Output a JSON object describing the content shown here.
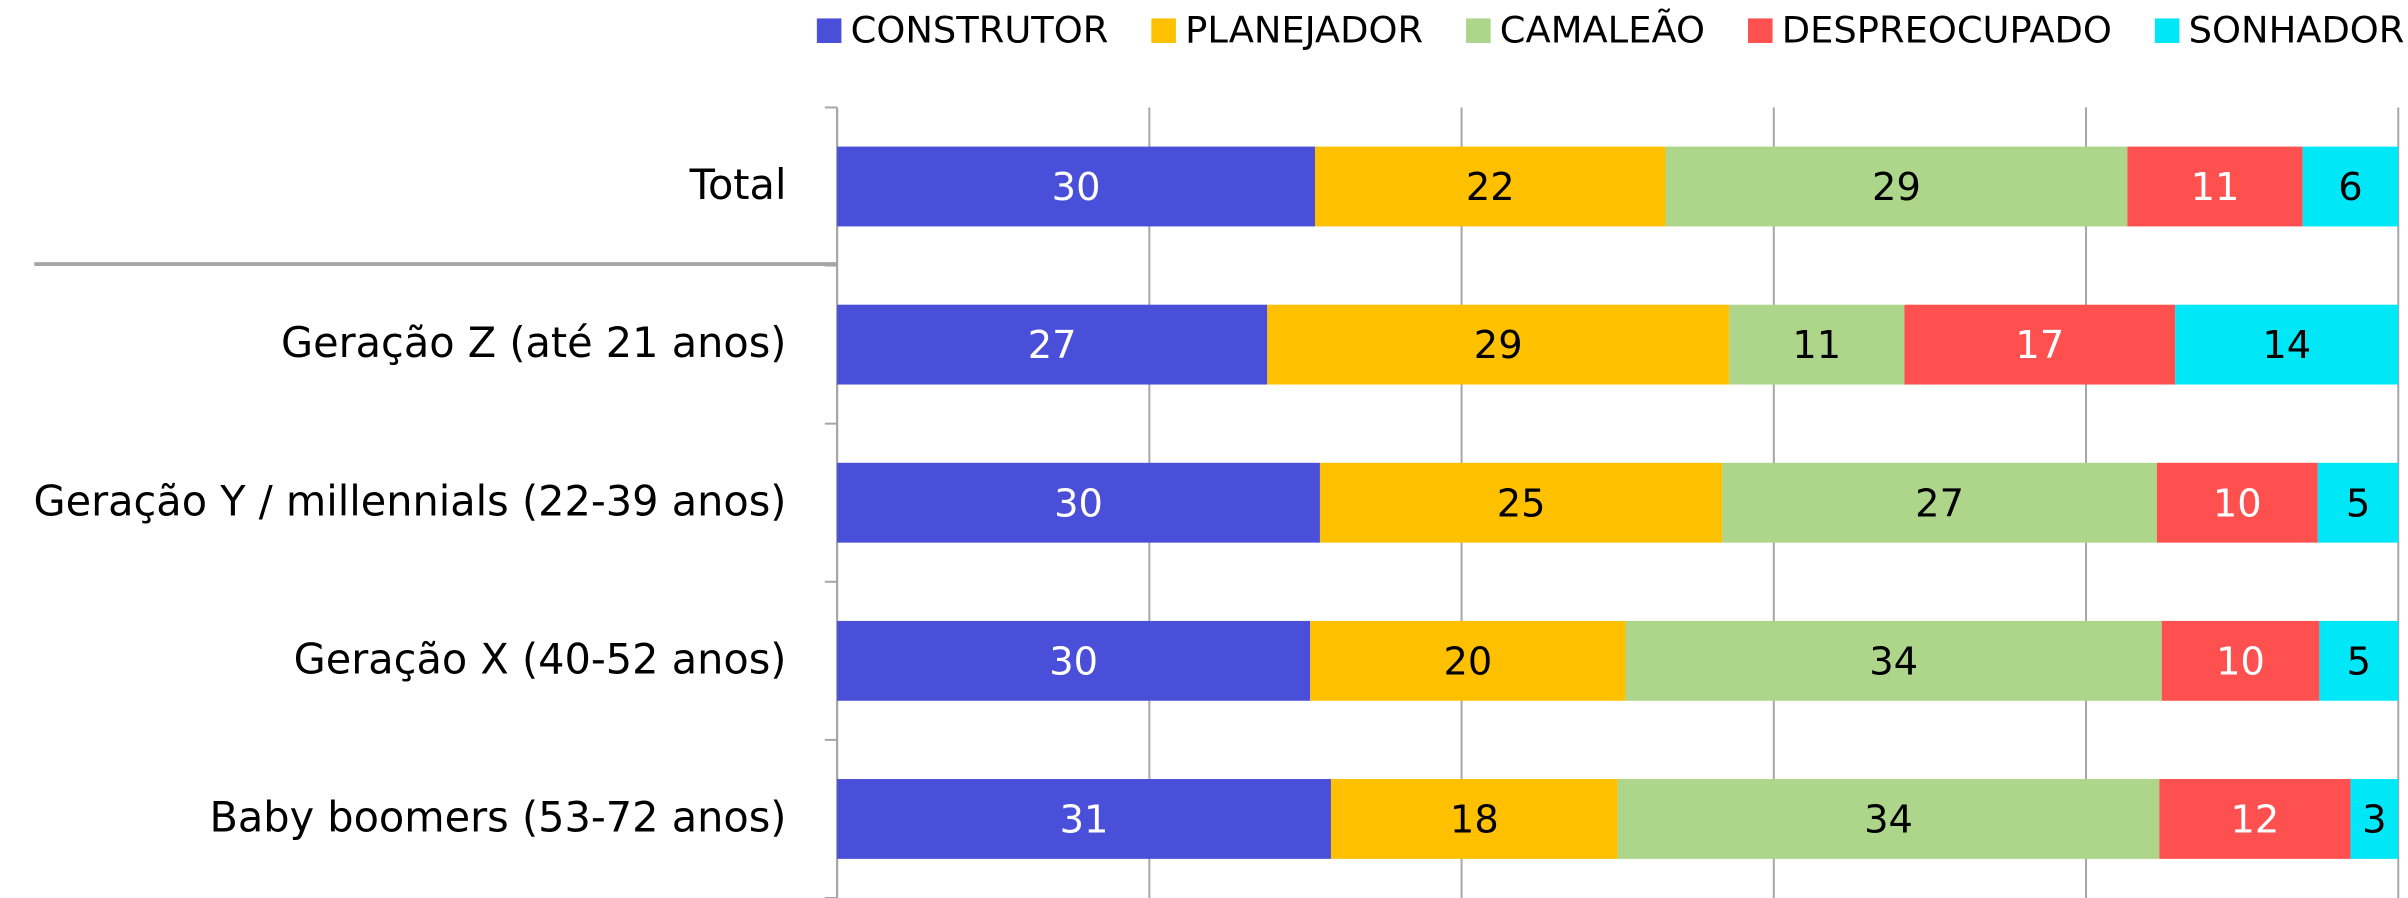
{
  "chart_data": {
    "type": "bar",
    "orientation": "horizontal",
    "stack": "percent",
    "categories": [
      "Total",
      "Geração Z (até 21 anos)",
      "Geração Y / millennials (22-39 anos)",
      "Geração X (40-52 anos)",
      "Baby boomers (53-72 anos)"
    ],
    "series": [
      {
        "name": "CONSTRUTOR",
        "color": "#4a4fd9",
        "values": [
          30,
          27,
          30,
          30,
          31
        ]
      },
      {
        "name": "PLANEJADOR",
        "color": "#ffc000",
        "values": [
          22,
          29,
          25,
          20,
          18
        ]
      },
      {
        "name": "CAMALEÃO",
        "color": "#aed68b",
        "values": [
          29,
          11,
          27,
          34,
          34
        ]
      },
      {
        "name": "DESPREOCUPADO",
        "color": "#ff5050",
        "values": [
          11,
          17,
          10,
          10,
          12
        ]
      },
      {
        "name": "SONHADOR",
        "color": "#00e8f8",
        "values": [
          6,
          14,
          5,
          5,
          3
        ]
      }
    ],
    "xlim": [
      0,
      100
    ],
    "xticks": [
      0,
      20,
      40,
      60,
      80,
      100
    ],
    "grid": true,
    "legend": "top-right"
  }
}
